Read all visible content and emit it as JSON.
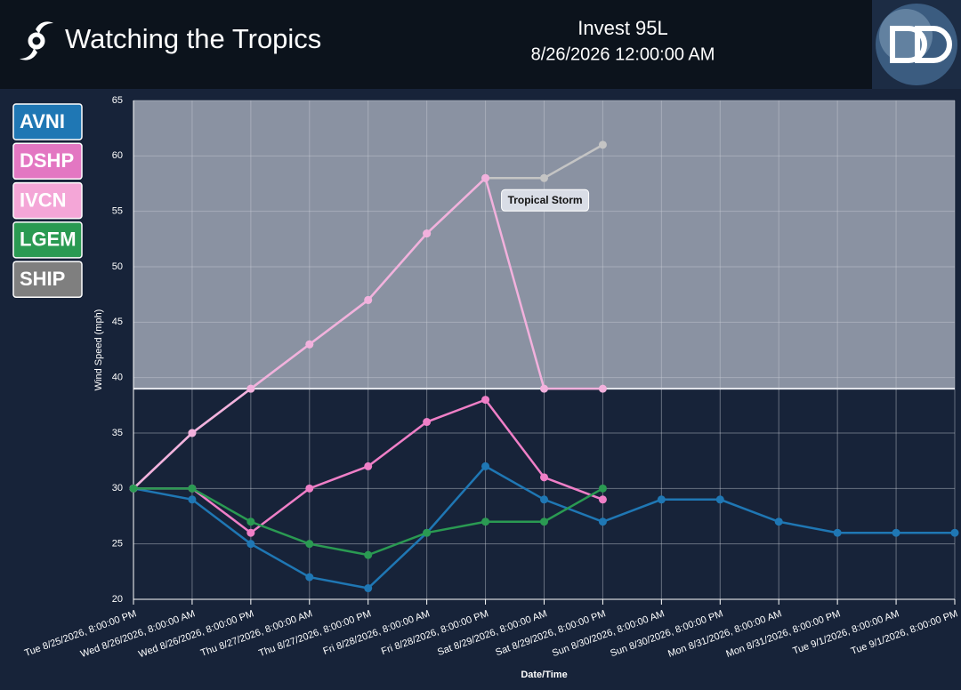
{
  "header": {
    "title": "Watching the Tropics",
    "storm": "Invest 95L",
    "datetime": "8/26/2026 12:00:00 AM"
  },
  "chart_data": {
    "type": "line",
    "x_label": "Date/Time",
    "y_label": "Wind Speed (mph)",
    "categories": [
      "Tue 8/25/2026, 8:00:00 PM",
      "Wed 8/26/2026, 8:00:00 AM",
      "Wed 8/26/2026, 8:00:00 PM",
      "Thu 8/27/2026, 8:00:00 AM",
      "Thu 8/27/2026, 8:00:00 PM",
      "Fri 8/28/2026, 8:00:00 AM",
      "Fri 8/28/2026, 8:00:00 PM",
      "Sat 8/29/2026, 8:00:00 AM",
      "Sat 8/29/2026, 8:00:00 PM",
      "Sun 8/30/2026, 8:00:00 AM",
      "Sun 8/30/2026, 8:00:00 PM",
      "Mon 8/31/2026, 8:00:00 AM",
      "Mon 8/31/2026, 8:00:00 PM",
      "Tue 9/1/2026, 8:00:00 AM",
      "Tue 9/1/2026, 8:00:00 PM"
    ],
    "series": [
      {
        "name": "AVNI",
        "color": "#1f77b4",
        "values": [
          30,
          29,
          25,
          22,
          21,
          26,
          32,
          29,
          27,
          29,
          29,
          27,
          26,
          26,
          26
        ]
      },
      {
        "name": "DSHP",
        "color": "#e377c2",
        "values": [
          30,
          30,
          26,
          30,
          32,
          36,
          38,
          31,
          29,
          null,
          null,
          null,
          null,
          null,
          null
        ]
      },
      {
        "name": "IVCN",
        "color": "#f4a6d7",
        "values": [
          30,
          35,
          39,
          43,
          47,
          53,
          58,
          39,
          39,
          null,
          null,
          null,
          null,
          null,
          null
        ]
      },
      {
        "name": "LGEM",
        "color": "#2a9a52",
        "values": [
          30,
          30,
          27,
          25,
          24,
          26,
          27,
          27,
          30,
          null,
          null,
          null,
          null,
          null,
          null
        ]
      },
      {
        "name": "SHIP",
        "color": "#7f7f7f",
        "values": [
          30,
          35,
          39,
          43,
          47,
          53,
          58,
          58,
          61,
          null,
          null,
          null,
          null,
          null,
          null
        ]
      }
    ],
    "ylim": [
      20,
      65
    ],
    "yticks": [
      20,
      25,
      30,
      35,
      40,
      45,
      50,
      55,
      60,
      65
    ],
    "grid": true,
    "threshold": {
      "value": 39,
      "label": "Tropical Storm"
    }
  }
}
